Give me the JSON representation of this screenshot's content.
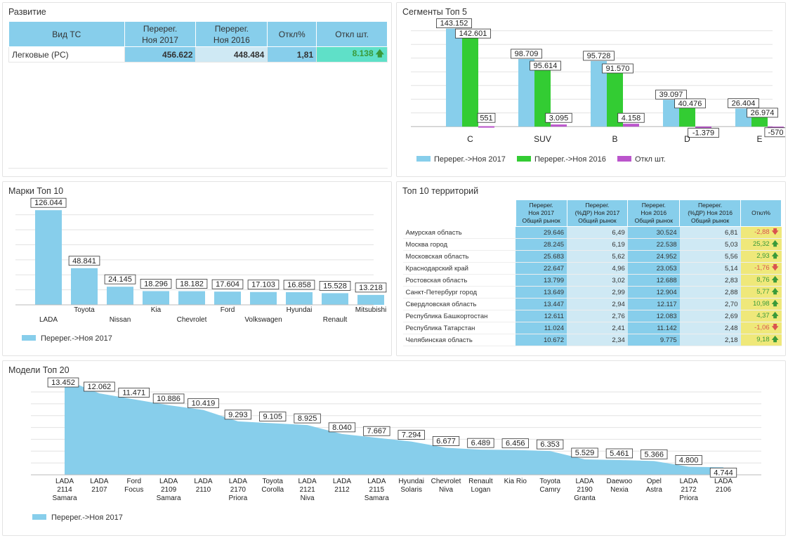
{
  "colors": {
    "blue": "#87ceeb",
    "green": "#33cc33",
    "purple": "#bb55cc",
    "lightblue": "#cfe9f4",
    "teal": "#5fe0c8",
    "yellow": "#efe87a"
  },
  "panels": {
    "development": {
      "title": "Развитие",
      "headers": [
        "Вид ТС",
        "Перерег.\nНоя 2017",
        "Перерег.\nНоя 2016",
        "Откл%",
        "Откл шт."
      ],
      "row": {
        "type": "Легковые (PC)",
        "nov2017": "456.622",
        "nov2016": "448.484",
        "dev_pct": "1,81",
        "dev_units": "8.138"
      }
    },
    "segments": {
      "title": "Сегменты Топ 5"
    },
    "brands": {
      "title": "Марки Топ 10"
    },
    "territories": {
      "title": "Топ 10 территорий",
      "headers": [
        "Перерег.\nНоя 2017\nОбщий рынок",
        "Перерег.\n(%ДР) Ноя 2017\nОбщий рынок",
        "Перерег.\nНоя 2016\nОбщий рынок",
        "Перерег.\n(%ДР) Ноя 2016\nОбщий рынок",
        "Откл%"
      ],
      "rows": [
        {
          "name": "Амурская область",
          "v2017": "29.646",
          "p2017": "6,49",
          "v2016": "30.524",
          "p2016": "6,81",
          "dev": "-2,88",
          "dir": "down"
        },
        {
          "name": "Москва город",
          "v2017": "28.245",
          "p2017": "6,19",
          "v2016": "22.538",
          "p2016": "5,03",
          "dev": "25,32",
          "dir": "up"
        },
        {
          "name": "Московская область",
          "v2017": "25.683",
          "p2017": "5,62",
          "v2016": "24.952",
          "p2016": "5,56",
          "dev": "2,93",
          "dir": "up"
        },
        {
          "name": "Краснодарский край",
          "v2017": "22.647",
          "p2017": "4,96",
          "v2016": "23.053",
          "p2016": "5,14",
          "dev": "-1,76",
          "dir": "down"
        },
        {
          "name": "Ростовская область",
          "v2017": "13.799",
          "p2017": "3,02",
          "v2016": "12.688",
          "p2016": "2,83",
          "dev": "8,76",
          "dir": "up"
        },
        {
          "name": "Санкт-Петербург город",
          "v2017": "13.649",
          "p2017": "2,99",
          "v2016": "12.904",
          "p2016": "2,88",
          "dev": "5,77",
          "dir": "up"
        },
        {
          "name": "Свердловская область",
          "v2017": "13.447",
          "p2017": "2,94",
          "v2016": "12.117",
          "p2016": "2,70",
          "dev": "10,98",
          "dir": "up"
        },
        {
          "name": "Республика Башкортостан",
          "v2017": "12.611",
          "p2017": "2,76",
          "v2016": "12.083",
          "p2016": "2,69",
          "dev": "4,37",
          "dir": "up"
        },
        {
          "name": "Республика Татарстан",
          "v2017": "11.024",
          "p2017": "2,41",
          "v2016": "11.142",
          "p2016": "2,48",
          "dev": "-1,06",
          "dir": "down"
        },
        {
          "name": "Челябинская область",
          "v2017": "10.672",
          "p2017": "2,34",
          "v2016": "9.775",
          "p2016": "2,18",
          "dev": "9,18",
          "dir": "up"
        }
      ]
    },
    "models": {
      "title": "Модели Топ 20"
    }
  },
  "chart_data": [
    {
      "id": "segments",
      "type": "bar",
      "categories": [
        "C",
        "SUV",
        "B",
        "D",
        "E"
      ],
      "series": [
        {
          "name": "Перерег.->Ноя 2017",
          "values": [
            143152,
            98709,
            95728,
            39097,
            26404
          ],
          "labels": [
            "143.152",
            "98.709",
            "95.728",
            "39.097",
            "26.404"
          ]
        },
        {
          "name": "Перерег.->Ноя 2016",
          "values": [
            142601,
            95614,
            91570,
            40476,
            26974
          ],
          "labels": [
            "142.601",
            "95.614",
            "91.570",
            "40.476",
            "26.974"
          ]
        },
        {
          "name": "Откл шт.",
          "values": [
            551,
            3095,
            4158,
            -1379,
            -570
          ],
          "labels": [
            "551",
            "3.095",
            "4.158",
            "-1.379",
            "-570"
          ]
        }
      ],
      "ylim": [
        -10000,
        150000
      ],
      "grid": true,
      "legend": "bottom"
    },
    {
      "id": "brands",
      "type": "bar",
      "categories": [
        "LADA",
        "Toyota",
        "Nissan",
        "Kia",
        "Chevrolet",
        "Ford",
        "Volkswagen",
        "Hyundai",
        "Renault",
        "Mitsubishi"
      ],
      "series": [
        {
          "name": "Перерег.->Ноя 2017",
          "values": [
            126044,
            48841,
            24145,
            18296,
            18182,
            17604,
            17103,
            16858,
            15528,
            13218
          ],
          "labels": [
            "126.044",
            "48.841",
            "24.145",
            "18.296",
            "18.182",
            "17.604",
            "17.103",
            "16.858",
            "15.528",
            "13.218"
          ]
        }
      ],
      "ylim": [
        0,
        130000
      ],
      "grid": true,
      "legend": "bottom"
    },
    {
      "id": "models",
      "type": "area",
      "categories": [
        "LADA\n2114\nSamara",
        "LADA\n2107",
        "Ford\nFocus",
        "LADA\n2109\nSamara",
        "LADA\n2110",
        "LADA\n2170\nPriora",
        "Toyota\nCorolla",
        "LADA\n2121\nNiva",
        "LADA\n2112",
        "LADA\n2115\nSamara",
        "Hyundai\nSolaris",
        "Chevrolet\nNiva",
        "Renault\nLogan",
        "Kia Rio",
        "Toyota\nCamry",
        "LADA\n2190\nGranta",
        "Daewoo\nNexia",
        "Opel\nAstra",
        "LADA\n2172\nPriora",
        "LADA\n2106"
      ],
      "series": [
        {
          "name": "Перерег.->Ноя 2017",
          "values": [
            13452,
            12062,
            11471,
            10886,
            10419,
            9293,
            9105,
            8925,
            8040,
            7667,
            7294,
            6677,
            6489,
            6456,
            6353,
            5529,
            5461,
            5366,
            4800,
            4744
          ],
          "labels": [
            "13.452",
            "12.062",
            "11.471",
            "10.886",
            "10.419",
            "9.293",
            "9.105",
            "8.925",
            "8.040",
            "7.667",
            "7.294",
            "6.677",
            "6.489",
            "6.456",
            "6.353",
            "5.529",
            "5.461",
            "5.366",
            "4.800",
            "4.744"
          ]
        }
      ],
      "ylim": [
        0,
        13000
      ],
      "grid": true,
      "legend": "bottom"
    }
  ]
}
